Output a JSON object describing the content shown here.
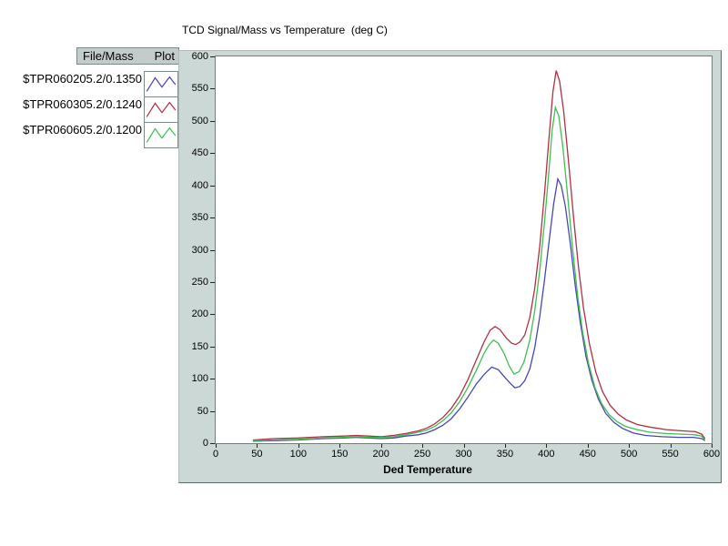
{
  "title": "TCD Signal/Mass vs Temperature  (deg C)",
  "legend": {
    "header_file": "File/Mass",
    "header_plot": "Plot",
    "entries": [
      {
        "label": "$TPR060205.2/0.1350",
        "color": "#4747b2"
      },
      {
        "label": "$TPR060305.2/0.1240",
        "color": "#b03042"
      },
      {
        "label": "$TPR060605.2/0.1200",
        "color": "#3fbf4f"
      }
    ]
  },
  "chart_data": {
    "type": "line",
    "title": "TCD Signal/Mass vs Temperature  (deg C)",
    "xlabel": "Ded Temperature",
    "ylabel": "",
    "xlim": [
      0,
      600
    ],
    "ylim": [
      0,
      600
    ],
    "xticks": [
      0,
      50,
      100,
      150,
      200,
      250,
      300,
      350,
      400,
      450,
      500,
      550,
      600
    ],
    "yticks": [
      0,
      50,
      100,
      150,
      200,
      250,
      300,
      350,
      400,
      450,
      500,
      550,
      600
    ],
    "grid": false,
    "legend_position": "left",
    "plot_bg": "#ffffff",
    "panel_bg": "#ccd8d6",
    "series": [
      {
        "name": "$TPR060205.2/0.1350",
        "color": "#4747b2",
        "points": [
          [
            45,
            3
          ],
          [
            70,
            4
          ],
          [
            100,
            5
          ],
          [
            130,
            7
          ],
          [
            155,
            8
          ],
          [
            170,
            9
          ],
          [
            185,
            8
          ],
          [
            200,
            7
          ],
          [
            215,
            8
          ],
          [
            230,
            11
          ],
          [
            245,
            13
          ],
          [
            255,
            16
          ],
          [
            265,
            21
          ],
          [
            275,
            28
          ],
          [
            285,
            38
          ],
          [
            295,
            53
          ],
          [
            305,
            71
          ],
          [
            315,
            91
          ],
          [
            325,
            107
          ],
          [
            334,
            118
          ],
          [
            342,
            114
          ],
          [
            350,
            102
          ],
          [
            357,
            92
          ],
          [
            362,
            86
          ],
          [
            368,
            88
          ],
          [
            374,
            97
          ],
          [
            380,
            115
          ],
          [
            386,
            148
          ],
          [
            392,
            196
          ],
          [
            398,
            255
          ],
          [
            404,
            320
          ],
          [
            409,
            372
          ],
          [
            414,
            410
          ],
          [
            418,
            400
          ],
          [
            423,
            368
          ],
          [
            429,
            310
          ],
          [
            435,
            245
          ],
          [
            441,
            188
          ],
          [
            448,
            135
          ],
          [
            455,
            98
          ],
          [
            463,
            68
          ],
          [
            472,
            46
          ],
          [
            482,
            32
          ],
          [
            492,
            23
          ],
          [
            505,
            16
          ],
          [
            520,
            12
          ],
          [
            540,
            10
          ],
          [
            560,
            9
          ],
          [
            578,
            9
          ],
          [
            588,
            7
          ],
          [
            592,
            4
          ]
        ]
      },
      {
        "name": "$TPR060305.2/0.1240",
        "color": "#b03042",
        "points": [
          [
            45,
            5
          ],
          [
            70,
            7
          ],
          [
            100,
            8
          ],
          [
            130,
            10
          ],
          [
            155,
            11
          ],
          [
            170,
            12
          ],
          [
            185,
            11
          ],
          [
            200,
            10
          ],
          [
            215,
            12
          ],
          [
            230,
            15
          ],
          [
            245,
            19
          ],
          [
            255,
            23
          ],
          [
            265,
            30
          ],
          [
            275,
            40
          ],
          [
            285,
            54
          ],
          [
            295,
            73
          ],
          [
            305,
            98
          ],
          [
            315,
            128
          ],
          [
            325,
            158
          ],
          [
            332,
            175
          ],
          [
            338,
            181
          ],
          [
            344,
            176
          ],
          [
            351,
            164
          ],
          [
            358,
            155
          ],
          [
            363,
            153
          ],
          [
            368,
            157
          ],
          [
            374,
            168
          ],
          [
            380,
            195
          ],
          [
            386,
            240
          ],
          [
            392,
            305
          ],
          [
            398,
            390
          ],
          [
            403,
            470
          ],
          [
            408,
            545
          ],
          [
            412,
            578
          ],
          [
            416,
            562
          ],
          [
            421,
            515
          ],
          [
            427,
            435
          ],
          [
            433,
            350
          ],
          [
            439,
            272
          ],
          [
            445,
            210
          ],
          [
            452,
            155
          ],
          [
            460,
            110
          ],
          [
            468,
            80
          ],
          [
            477,
            59
          ],
          [
            487,
            45
          ],
          [
            497,
            36
          ],
          [
            510,
            29
          ],
          [
            525,
            25
          ],
          [
            545,
            21
          ],
          [
            565,
            19
          ],
          [
            580,
            18
          ],
          [
            588,
            14
          ],
          [
            592,
            7
          ]
        ]
      },
      {
        "name": "$TPR060605.2/0.1200",
        "color": "#3fbf4f",
        "points": [
          [
            45,
            4
          ],
          [
            70,
            5
          ],
          [
            100,
            6
          ],
          [
            130,
            8
          ],
          [
            155,
            9
          ],
          [
            170,
            10
          ],
          [
            185,
            9
          ],
          [
            200,
            9
          ],
          [
            215,
            10
          ],
          [
            230,
            13
          ],
          [
            245,
            17
          ],
          [
            255,
            20
          ],
          [
            265,
            26
          ],
          [
            275,
            35
          ],
          [
            285,
            47
          ],
          [
            295,
            64
          ],
          [
            305,
            86
          ],
          [
            315,
            112
          ],
          [
            325,
            140
          ],
          [
            331,
            153
          ],
          [
            336,
            160
          ],
          [
            342,
            155
          ],
          [
            349,
            139
          ],
          [
            355,
            120
          ],
          [
            361,
            107
          ],
          [
            367,
            111
          ],
          [
            373,
            126
          ],
          [
            380,
            160
          ],
          [
            386,
            205
          ],
          [
            392,
            268
          ],
          [
            398,
            345
          ],
          [
            403,
            420
          ],
          [
            407,
            485
          ],
          [
            411,
            521
          ],
          [
            415,
            508
          ],
          [
            420,
            460
          ],
          [
            426,
            382
          ],
          [
            432,
            300
          ],
          [
            438,
            228
          ],
          [
            444,
            172
          ],
          [
            451,
            124
          ],
          [
            459,
            86
          ],
          [
            467,
            61
          ],
          [
            476,
            44
          ],
          [
            486,
            33
          ],
          [
            496,
            26
          ],
          [
            510,
            21
          ],
          [
            525,
            17
          ],
          [
            545,
            15
          ],
          [
            565,
            14
          ],
          [
            580,
            13
          ],
          [
            588,
            11
          ],
          [
            592,
            5
          ]
        ]
      }
    ]
  }
}
